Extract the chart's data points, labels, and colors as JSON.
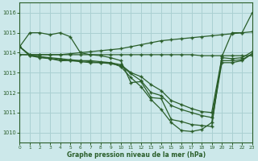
{
  "hours": [
    0,
    1,
    2,
    3,
    4,
    5,
    6,
    7,
    8,
    9,
    10,
    11,
    12,
    13,
    14,
    15,
    16,
    17,
    18,
    19,
    20,
    21,
    22,
    23
  ],
  "line_color": "#2a5e2a",
  "bg_color": "#cce8ea",
  "grid_color": "#aad0d2",
  "xlabel": "Graphe pression niveau de la mer (hPa)",
  "xlim": [
    0,
    23
  ],
  "ylim": [
    1009.5,
    1016.5
  ],
  "yticks": [
    1010,
    1011,
    1012,
    1013,
    1014,
    1015,
    1016
  ],
  "xticks": [
    0,
    1,
    2,
    3,
    4,
    5,
    6,
    7,
    8,
    9,
    10,
    11,
    12,
    13,
    14,
    15,
    16,
    17,
    18,
    19,
    20,
    21,
    22,
    23
  ],
  "series_flat": [
    1013.9,
    1013.9,
    1013.9,
    1013.9,
    1013.9,
    1013.9,
    1013.9,
    1013.9,
    1013.9,
    1013.9,
    1013.9,
    1013.9,
    1013.9,
    1013.9,
    1013.9,
    1013.9,
    1013.9,
    1013.9,
    1013.85,
    1013.85,
    1013.85,
    1013.85,
    1013.85,
    1013.85
  ],
  "series_rising": [
    1013.9,
    1013.9,
    1013.9,
    1013.9,
    1013.9,
    1013.95,
    1014.0,
    1014.05,
    1014.1,
    1014.15,
    1014.2,
    1014.3,
    1014.4,
    1014.5,
    1014.6,
    1014.65,
    1014.7,
    1014.75,
    1014.8,
    1014.85,
    1014.9,
    1014.95,
    1015.0,
    1016.0
  ],
  "series_up_then_down": [
    1014.3,
    1015.0,
    1015.0,
    1014.9,
    1015.0,
    1014.8,
    1014.0,
    1013.9,
    1013.85,
    1013.75,
    1013.6,
    1012.5,
    1012.55,
    1011.75,
    1011.7,
    1010.65,
    1010.55,
    1010.4,
    1010.35,
    1010.3,
    1013.8,
    1015.0,
    1015.0,
    1015.05
  ],
  "series_oscillate": [
    1014.3,
    1013.85,
    1013.75,
    1013.7,
    1013.6,
    1013.6,
    1013.55,
    1013.5,
    1013.5,
    1013.5,
    1013.4,
    1013.0,
    1012.8,
    1012.4,
    1012.1,
    1011.6,
    1011.4,
    1011.2,
    1011.05,
    1011.0,
    1013.75,
    1013.7,
    1013.75,
    1014.05
  ],
  "series_mid": [
    1014.3,
    1013.85,
    1013.8,
    1013.75,
    1013.7,
    1013.65,
    1013.6,
    1013.55,
    1013.5,
    1013.45,
    1013.35,
    1012.95,
    1012.6,
    1012.0,
    1011.85,
    1011.35,
    1011.15,
    1011.0,
    1010.85,
    1010.75,
    1013.6,
    1013.6,
    1013.65,
    1013.95
  ],
  "series_lower": [
    1014.3,
    1013.9,
    1013.8,
    1013.7,
    1013.65,
    1013.6,
    1013.6,
    1013.6,
    1013.55,
    1013.5,
    1013.3,
    1012.75,
    1012.3,
    1011.65,
    1011.15,
    1010.5,
    1010.1,
    1010.05,
    1010.15,
    1010.5,
    1013.5,
    1013.5,
    1013.6,
    1013.95
  ]
}
